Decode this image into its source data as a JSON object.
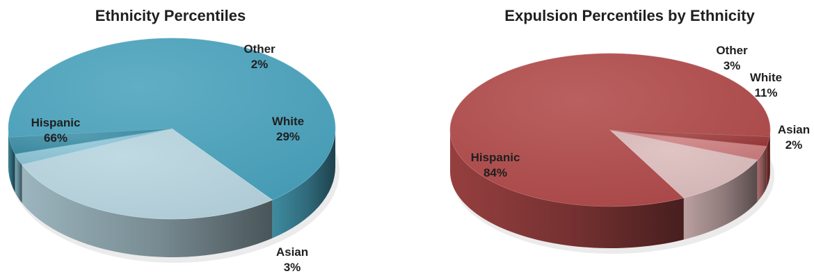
{
  "chart_data": [
    {
      "type": "pie",
      "title": "Ethnicity Percentiles",
      "categories": [
        "Hispanic",
        "White",
        "Other",
        "Asian"
      ],
      "values": [
        66,
        29,
        2,
        3
      ],
      "value_labels": [
        "66%",
        "29%",
        "2%",
        "3%"
      ],
      "colors": [
        "#4aa3bd",
        "#b7d5df",
        "#8dc6d8",
        "#3d8ea6"
      ],
      "style": "3d-pie"
    },
    {
      "type": "pie",
      "title": "Expulsion Percentiles by Ethnicity",
      "categories": [
        "Hispanic",
        "White",
        "Other",
        "Asian"
      ],
      "values": [
        84,
        11,
        3,
        2
      ],
      "value_labels": [
        "84%",
        "11%",
        "3%",
        "2%"
      ],
      "colors": [
        "#b14a4a",
        "#dcbcbc",
        "#cd7f80",
        "#9d3b3c"
      ],
      "style": "3d-pie"
    }
  ]
}
